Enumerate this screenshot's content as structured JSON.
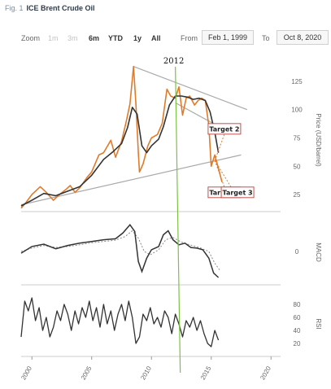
{
  "figure": {
    "prefix": "Fig. 1",
    "title": "ICE Brent Crude Oil"
  },
  "toolbar": {
    "zoom_label": "Zoom",
    "buttons": [
      {
        "label": "1m",
        "state": "disabled"
      },
      {
        "label": "3m",
        "state": "disabled"
      },
      {
        "label": "6m",
        "state": "normal"
      },
      {
        "label": "YTD",
        "state": "normal"
      },
      {
        "label": "1y",
        "state": "normal"
      },
      {
        "label": "All",
        "state": "normal"
      }
    ],
    "from_label": "From",
    "from_value": "Feb 1, 1999",
    "to_label": "To",
    "to_value": "Oct 8, 2020"
  },
  "colors": {
    "price": "#e07b2a",
    "moving_average": "#333333",
    "trend_lines": "#aaaaaa",
    "marker_line": "#7cc242",
    "targets": "#e07b2a",
    "target_box": "#c0504d"
  },
  "chart_data": [
    {
      "type": "line",
      "panel": "price",
      "ylabel": "Price (USD/barrel)",
      "ylim": [
        10,
        145
      ],
      "y_ticks": [
        25,
        50,
        75,
        100,
        125
      ],
      "xlim": [
        1999.1,
        2020.8
      ],
      "x_ticks": [
        2000,
        2005,
        2010,
        2015,
        2020
      ],
      "x_tick_labels": [
        "2000",
        "2005",
        "2010",
        "2015",
        "2020"
      ],
      "grid": false,
      "series": [
        {
          "role": "price",
          "x": [
            1999.1,
            1999.5,
            2000.0,
            2000.7,
            2001.2,
            2001.8,
            2002.3,
            2002.9,
            2003.2,
            2003.6,
            2004.0,
            2004.6,
            2005.0,
            2005.6,
            2006.0,
            2006.6,
            2007.0,
            2007.5,
            2007.9,
            2008.2,
            2008.5,
            2008.7,
            2008.9,
            2009.0,
            2009.3,
            2009.7,
            2010.0,
            2010.5,
            2010.9,
            2011.3,
            2011.6,
            2012.0,
            2012.3,
            2012.6,
            2012.9,
            2013.2,
            2013.6,
            2013.9,
            2014.2,
            2014.5,
            2014.8,
            2015.0,
            2015.3,
            2015.6,
            2015.9
          ],
          "y": [
            13,
            18,
            25,
            32,
            27,
            20,
            25,
            30,
            33,
            27,
            31,
            40,
            45,
            60,
            62,
            73,
            58,
            72,
            90,
            105,
            138,
            105,
            62,
            45,
            52,
            68,
            75,
            78,
            88,
            118,
            112,
            110,
            120,
            95,
            110,
            112,
            104,
            108,
            110,
            108,
            86,
            50,
            60,
            48,
            36
          ]
        },
        {
          "role": "moving average",
          "x": [
            1999.1,
            2000.0,
            2001.0,
            2002.0,
            2003.0,
            2004.0,
            2005.0,
            2006.0,
            2006.8,
            2007.5,
            2008.0,
            2008.4,
            2008.8,
            2009.2,
            2009.6,
            2010.0,
            2010.6,
            2011.0,
            2011.5,
            2012.0,
            2012.5,
            2013.0,
            2013.5,
            2014.0,
            2014.5,
            2014.9,
            2015.3,
            2015.6
          ],
          "y": [
            15,
            20,
            26,
            24,
            28,
            32,
            42,
            56,
            63,
            70,
            84,
            102,
            96,
            68,
            62,
            68,
            74,
            85,
            104,
            112,
            112,
            111,
            109,
            110,
            108,
            98,
            80,
            62
          ]
        }
      ],
      "trend_lines": [
        {
          "x": [
            1999.1,
            2017.5
          ],
          "y": [
            16,
            60
          ]
        },
        {
          "x": [
            2008.5,
            2018.0
          ],
          "y": [
            138,
            100
          ]
        },
        {
          "x": [
            2012.0,
            2015.3
          ],
          "y": [
            106,
            87
          ]
        }
      ],
      "targets": [
        {
          "label": "Target 2",
          "x": 2016.1,
          "y": 83
        },
        {
          "label": "Target 1",
          "x": 2016.1,
          "y": 27
        },
        {
          "label": "Target 3",
          "x": 2017.2,
          "y": 27
        }
      ],
      "vertical_marker": {
        "label": "2012",
        "x": 2012.0
      }
    },
    {
      "type": "line",
      "panel": "macd",
      "ylabel": "MACD",
      "ylim": [
        -1,
        1
      ],
      "y_ticks": [
        0
      ],
      "series": [
        {
          "role": "macd",
          "x": [
            1999.1,
            2000.0,
            2001.0,
            2002.0,
            2003.0,
            2004.0,
            2005.0,
            2006.0,
            2007.0,
            2007.6,
            2008.2,
            2008.6,
            2008.9,
            2009.2,
            2009.6,
            2010.0,
            2010.6,
            2011.0,
            2011.4,
            2011.8,
            2012.3,
            2012.8,
            2013.3,
            2013.8,
            2014.3,
            2014.8,
            2015.2,
            2015.6
          ],
          "y": [
            -0.05,
            0.15,
            0.22,
            0.08,
            0.18,
            0.25,
            0.3,
            0.35,
            0.38,
            0.55,
            0.8,
            0.6,
            -0.3,
            -0.6,
            -0.2,
            0.05,
            0.15,
            0.5,
            0.62,
            0.35,
            0.2,
            0.25,
            0.12,
            0.1,
            0.05,
            -0.2,
            -0.65,
            -0.78
          ]
        },
        {
          "role": "signal",
          "x": [
            1999.1,
            2000.0,
            2001.0,
            2002.0,
            2003.0,
            2004.0,
            2005.0,
            2006.0,
            2007.0,
            2007.8,
            2008.4,
            2008.9,
            2009.4,
            2009.9,
            2010.6,
            2011.2,
            2011.8,
            2012.5,
            2013.2,
            2014.0,
            2014.8,
            2015.3,
            2015.7
          ],
          "y": [
            0.0,
            0.1,
            0.18,
            0.12,
            0.15,
            0.2,
            0.26,
            0.3,
            0.34,
            0.45,
            0.62,
            0.4,
            0.0,
            -0.1,
            0.05,
            0.35,
            0.42,
            0.28,
            0.2,
            0.12,
            0.0,
            -0.35,
            -0.55
          ]
        }
      ]
    },
    {
      "type": "line",
      "panel": "rsi",
      "ylabel": "RSI",
      "ylim": [
        0,
        100
      ],
      "y_ticks": [
        20,
        40,
        60,
        80
      ],
      "series": [
        {
          "role": "rsi",
          "x": [
            1999.1,
            1999.4,
            1999.7,
            2000.0,
            2000.3,
            2000.6,
            2000.9,
            2001.2,
            2001.5,
            2001.8,
            2002.1,
            2002.4,
            2002.7,
            2003.0,
            2003.3,
            2003.6,
            2003.9,
            2004.2,
            2004.5,
            2004.8,
            2005.1,
            2005.4,
            2005.7,
            2006.0,
            2006.3,
            2006.6,
            2006.9,
            2007.2,
            2007.5,
            2007.8,
            2008.1,
            2008.4,
            2008.7,
            2009.0,
            2009.3,
            2009.6,
            2009.9,
            2010.2,
            2010.5,
            2010.8,
            2011.1,
            2011.4,
            2011.7,
            2012.0,
            2012.3,
            2012.6,
            2012.9,
            2013.2,
            2013.5,
            2013.8,
            2014.1,
            2014.4,
            2014.7,
            2015.0,
            2015.3,
            2015.6
          ],
          "y": [
            30,
            85,
            70,
            90,
            55,
            75,
            40,
            60,
            30,
            45,
            70,
            55,
            80,
            65,
            40,
            70,
            50,
            75,
            60,
            85,
            55,
            75,
            45,
            80,
            50,
            70,
            40,
            65,
            80,
            55,
            85,
            60,
            20,
            30,
            65,
            55,
            75,
            50,
            60,
            45,
            70,
            60,
            35,
            65,
            50,
            30,
            55,
            45,
            60,
            40,
            55,
            35,
            20,
            15,
            40,
            25
          ]
        }
      ]
    }
  ]
}
